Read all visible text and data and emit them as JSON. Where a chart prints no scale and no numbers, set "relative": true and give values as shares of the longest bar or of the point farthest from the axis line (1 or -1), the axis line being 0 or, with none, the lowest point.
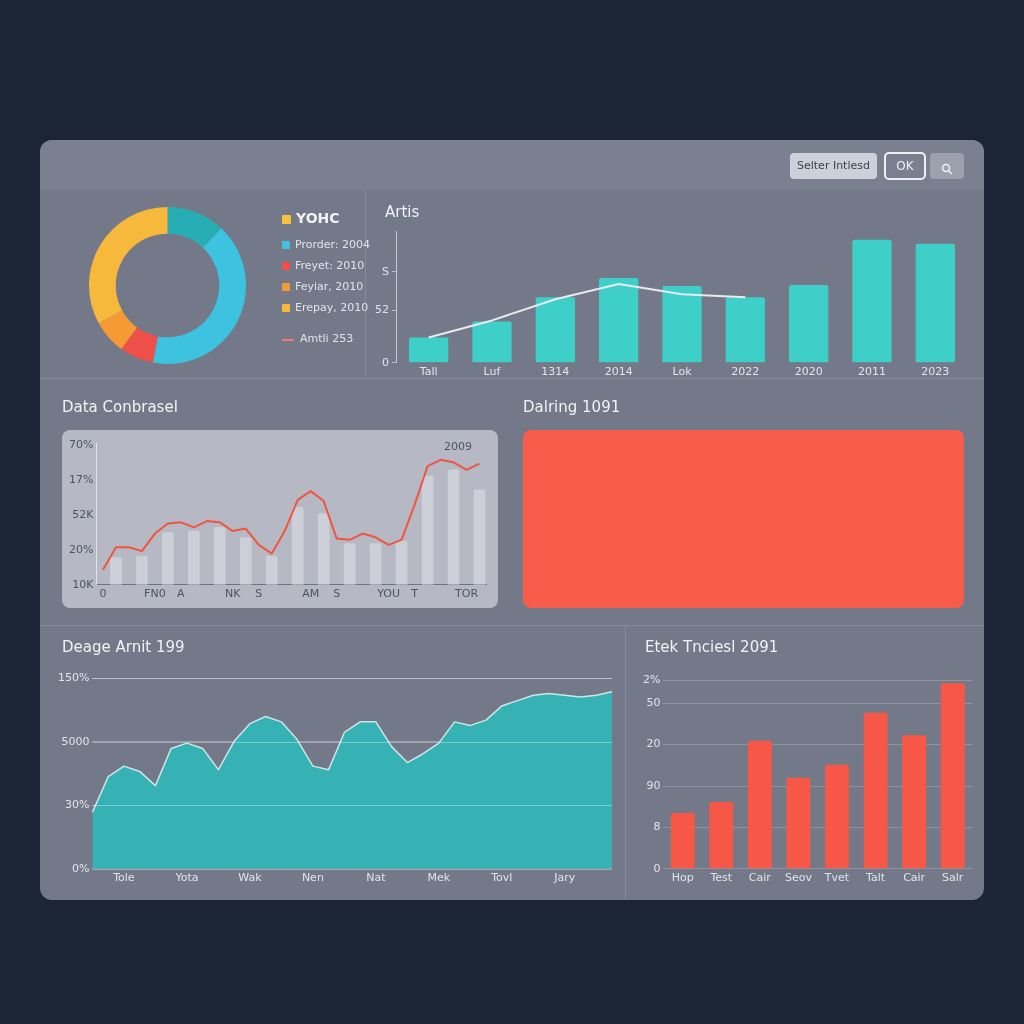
{
  "chart_data": [
    {
      "type": "other",
      "annotations": [
        "Selter Intlesd",
        "OK"
      ]
    },
    {
      "type": "donut",
      "categories": [
        null,
        "Prorder: 2004",
        "Freyet: 2010",
        "Feyiar, 2010",
        "Erepay, 2010"
      ],
      "values": [
        12,
        41,
        7,
        7,
        33
      ],
      "colors": [
        "#27aeb5",
        "#3dc3df",
        "#f0504a",
        "#f59a35",
        "#f7b93c"
      ],
      "legend": "right",
      "legend_title": "YOHC",
      "annotations": [
        "Amtli 253"
      ]
    },
    {
      "type": "bar",
      "title": "Artis",
      "categories": [
        "Tall",
        "Luf",
        "1314",
        "2014",
        "Lok",
        "2022",
        "2020",
        "2011",
        "2023"
      ],
      "ylim": [
        0,
        130
      ],
      "yticks": [
        0,
        52,
        {
          "value": 90,
          "label": "S"
        }
      ],
      "marker": "none",
      "series": [
        {
          "type": "bar",
          "color": "#3ecfc8",
          "values": [
            25,
            41,
            65,
            84,
            76,
            65,
            77,
            122,
            118
          ]
        },
        {
          "type": "line",
          "color": "#e8eaf0",
          "values": [
            25,
            42,
            63,
            78,
            68,
            65,
            null,
            null,
            null
          ]
        }
      ]
    },
    {
      "type": "line",
      "title": "Data Conbrasel",
      "relative": true,
      "categories": [
        "0",
        null,
        null,
        null,
        "FN0",
        null,
        "A",
        null,
        null,
        null,
        "NK",
        null,
        "S",
        null,
        null,
        null,
        "AM",
        null,
        "S",
        null,
        null,
        null,
        "YOU",
        null,
        "T",
        null,
        null,
        null,
        "TOR",
        null
      ],
      "marker": "none",
      "annotations": [
        "10K",
        "20%",
        "52K",
        "17%",
        "70%",
        "2009"
      ],
      "series": [
        {
          "type": "bar",
          "color": "#cdcfd8",
          "values": [
            null,
            0.22,
            null,
            0.23,
            null,
            0.42,
            null,
            0.43,
            null,
            0.46,
            null,
            0.38,
            null,
            0.23,
            null,
            0.62,
            null,
            0.57,
            null,
            0.33,
            null,
            0.33,
            null,
            0.35,
            null,
            0.87,
            null,
            0.92,
            null,
            0.76
          ]
        },
        {
          "type": "line",
          "color": "#f0553f",
          "values": [
            0.12,
            0.3,
            0.3,
            0.27,
            0.41,
            0.49,
            0.5,
            0.46,
            0.51,
            0.5,
            0.43,
            0.45,
            0.32,
            0.25,
            0.43,
            0.68,
            0.75,
            0.67,
            0.37,
            0.36,
            0.41,
            0.38,
            0.32,
            0.36,
            0.64,
            0.95,
            1,
            0.98,
            0.92,
            0.97
          ]
        }
      ]
    },
    {
      "type": "other",
      "title": "Dalring 1091"
    },
    {
      "type": "area",
      "title": "Deage Arnit 199",
      "relative": true,
      "categories": [
        null,
        null,
        "Tole",
        null,
        null,
        null,
        "Yota",
        null,
        null,
        null,
        "Wak",
        null,
        null,
        null,
        "Nen",
        null,
        null,
        null,
        "Nat",
        null,
        null,
        null,
        "Mek",
        null,
        null,
        null,
        "Tovl",
        null,
        null,
        null,
        "Jary",
        null,
        null,
        null
      ],
      "grid": "y",
      "marker": "none",
      "annotations": [
        "0%",
        "30%",
        "5000",
        "150%"
      ],
      "series": [
        {
          "color": "#36b1b4",
          "values": [
            0.32,
            0.52,
            0.58,
            0.55,
            0.47,
            0.68,
            0.71,
            0.68,
            0.56,
            0.72,
            0.82,
            0.86,
            0.83,
            0.73,
            0.58,
            0.56,
            0.77,
            0.83,
            0.83,
            0.69,
            0.6,
            0.65,
            0.71,
            0.83,
            0.81,
            0.84,
            0.92,
            0.95,
            0.98,
            0.99,
            0.98,
            0.97,
            0.98,
            1
          ]
        }
      ]
    },
    {
      "type": "bar",
      "title": "Etek Tnciesl 2091",
      "relative": true,
      "categories": [
        "Hop",
        "Test",
        "Cair",
        "Seov",
        "Tvet",
        "Talt",
        "Cair",
        "Salr"
      ],
      "grid": "y",
      "annotations": [
        "0",
        "8",
        "90",
        "20",
        "50",
        "2%"
      ],
      "color": "#f65747",
      "values": [
        0.3,
        0.36,
        0.69,
        0.49,
        0.56,
        0.84,
        0.72,
        1
      ]
    }
  ]
}
